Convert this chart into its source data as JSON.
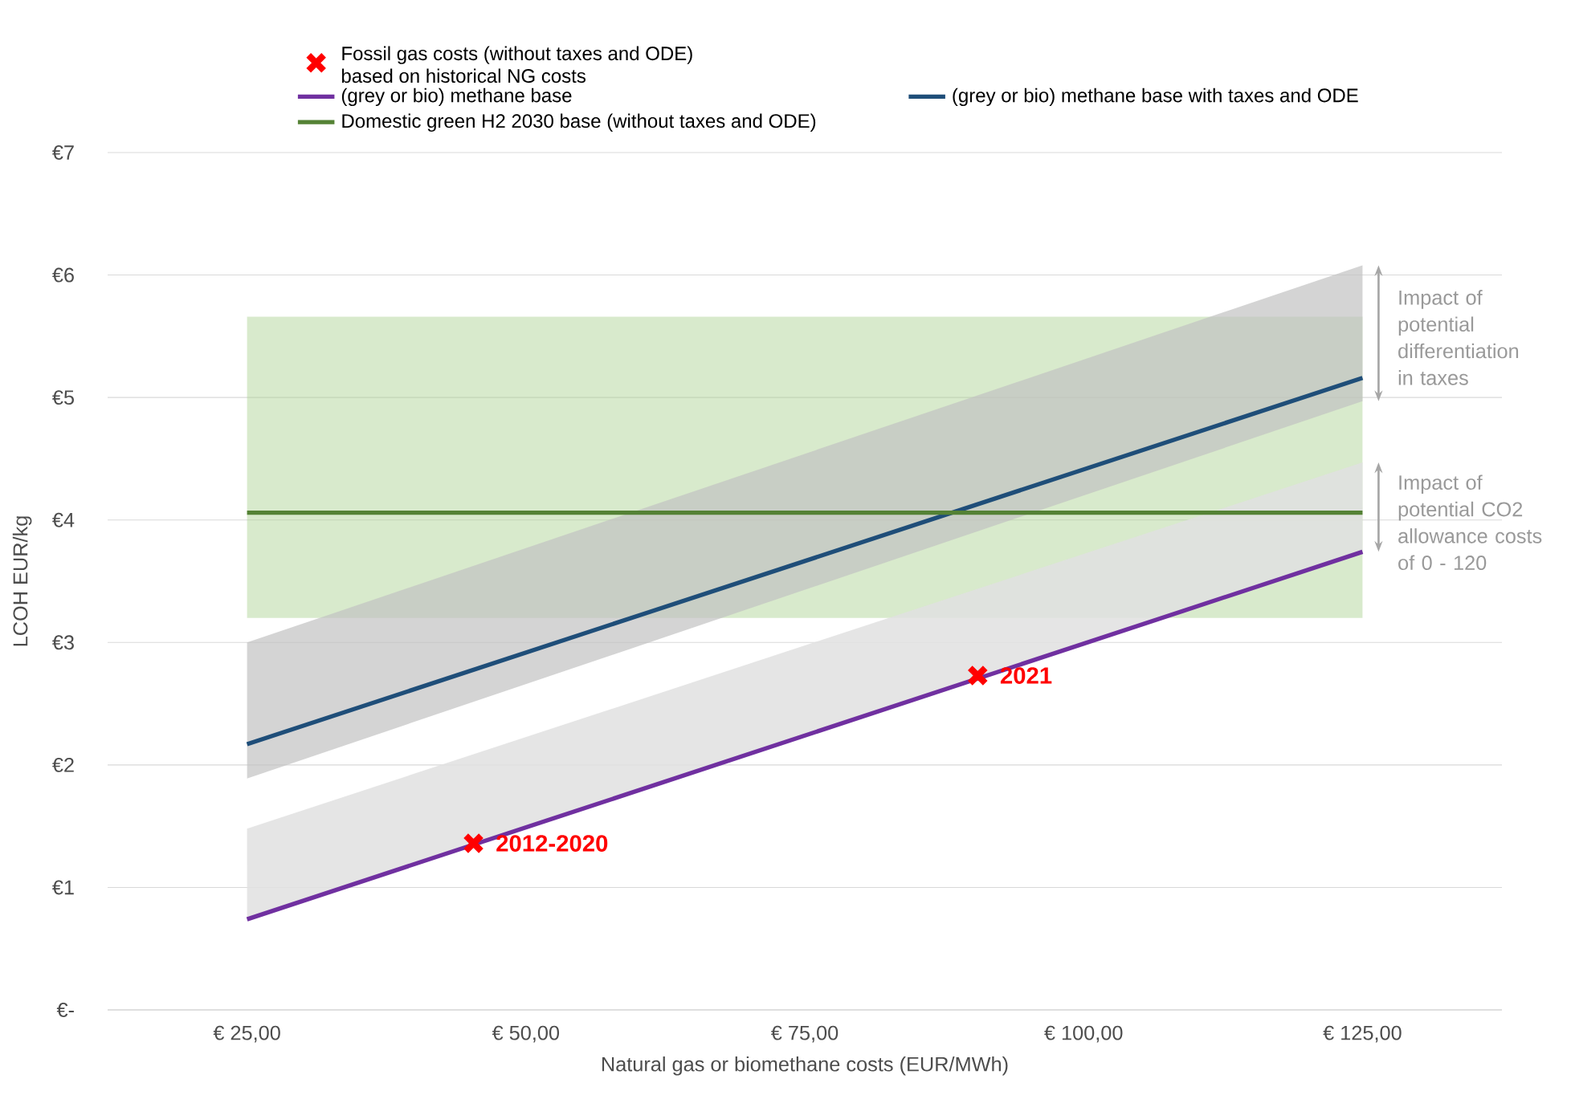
{
  "chart_data": {
    "type": "line",
    "xlabel": "Natural gas or biomethane costs (EUR/MWh)",
    "ylabel": "LCOH EUR/kg",
    "xlim": [
      12.5,
      137.5
    ],
    "ylim": [
      0,
      7
    ],
    "xticks": [
      {
        "value": 25,
        "label": "€ 25,00"
      },
      {
        "value": 50,
        "label": "€ 50,00"
      },
      {
        "value": 75,
        "label": "€ 75,00"
      },
      {
        "value": 100,
        "label": "€ 100,00"
      },
      {
        "value": 125,
        "label": "€ 125,00"
      }
    ],
    "yticks": [
      {
        "value": 0,
        "label": "€-"
      },
      {
        "value": 1,
        "label": "€1"
      },
      {
        "value": 2,
        "label": "€2"
      },
      {
        "value": 3,
        "label": "€3"
      },
      {
        "value": 4,
        "label": "€4"
      },
      {
        "value": 5,
        "label": "€5"
      },
      {
        "value": 6,
        "label": "€6"
      },
      {
        "value": 7,
        "label": "€7"
      }
    ],
    "grid": "y",
    "legend": "top",
    "series": [
      {
        "type": "scatter",
        "name": "Fossil gas costs (without taxes and ODE) based on historical NG costs",
        "color": "#ff0000",
        "marker": "cross",
        "x": [
          45.3,
          90.5
        ],
        "values": [
          1.36,
          2.73
        ]
      },
      {
        "name": "(grey or bio) methane base",
        "color": "#7030a0",
        "x": [
          25,
          125
        ],
        "values": [
          0.74,
          3.74
        ],
        "lower": [
          0.74,
          3.74
        ],
        "upper": [
          1.48,
          4.47
        ]
      },
      {
        "name": "(grey or bio) methane base with taxes and ODE",
        "color": "#1f4e79",
        "x": [
          25,
          125
        ],
        "values": [
          2.17,
          5.16
        ],
        "lower": [
          1.89,
          4.97
        ],
        "upper": [
          3.0,
          6.08
        ]
      },
      {
        "name": "Domestic green H2 2030 base (without taxes and ODE)",
        "color": "#548235",
        "x": [
          25,
          125
        ],
        "values": [
          4.06,
          4.06
        ],
        "lower": [
          3.2,
          3.2
        ],
        "upper": [
          5.66,
          5.66
        ]
      }
    ],
    "annotations": [
      {
        "text": "2012-2020",
        "x": 45.3,
        "y": 1.36
      },
      {
        "text": "2021",
        "x": 90.5,
        "y": 2.73
      },
      {
        "text": "Impact of potential differentiation in taxes",
        "x": 125,
        "y": 5.49
      },
      {
        "text": "Impact of potential CO2 allowance costs of 0 - 120",
        "x": 125,
        "y": 3.98
      }
    ]
  }
}
